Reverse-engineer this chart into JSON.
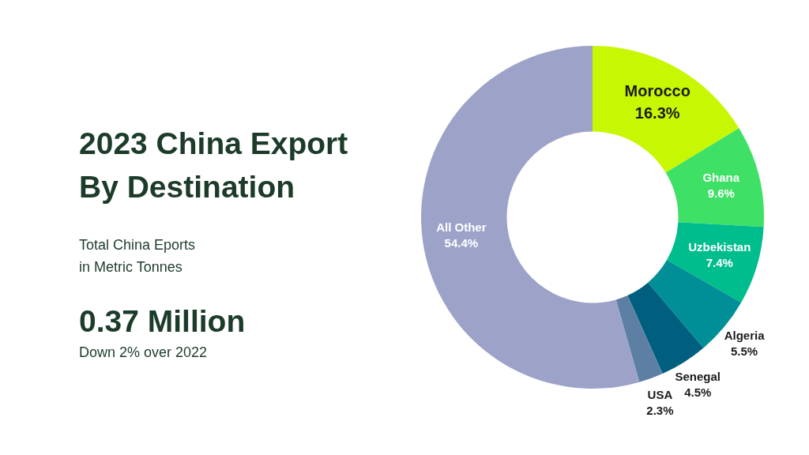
{
  "chart_data": {
    "type": "donut",
    "title": "2023 China Export By Destination",
    "subtitle": "Total China Eports in Metric Tonnes",
    "annotations": [
      "0.37 Million",
      "Down 2% over 2022"
    ],
    "categories": [
      "Morocco",
      "Ghana",
      "Uzbekistan",
      "Algeria",
      "Senegal",
      "USA",
      "All Other"
    ],
    "values": [
      16.3,
      9.6,
      7.4,
      5.5,
      4.5,
      2.3,
      54.4
    ],
    "value_labels": [
      "16.3%",
      "9.6%",
      "7.4%",
      "5.5%",
      "4.5%",
      "2.3%",
      "54.4%"
    ],
    "colors": [
      "#c8f704",
      "#3ee066",
      "#00bd8e",
      "#008f96",
      "#005f7e",
      "#5d7fa3",
      "#9da3c8"
    ]
  }
}
